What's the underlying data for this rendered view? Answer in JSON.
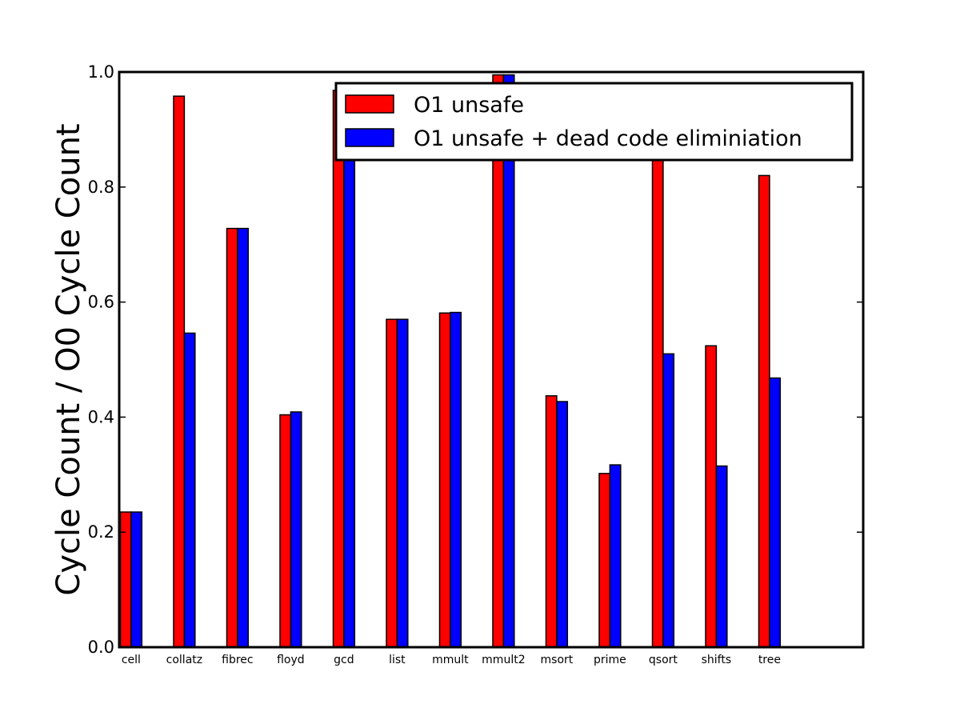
{
  "chart_data": {
    "type": "bar",
    "title": "",
    "xlabel": "",
    "ylabel": "Cycle Count / O0 Cycle Count",
    "ylim": [
      0.0,
      1.0
    ],
    "yticks": [
      "0.0",
      "0.2",
      "0.4",
      "0.6",
      "0.8",
      "1.0"
    ],
    "grid": false,
    "legend_position": "top-right",
    "categories": [
      "cell",
      "collatz",
      "fibrec",
      "floyd",
      "gcd",
      "list",
      "mmult",
      "mmult2",
      "msort",
      "prime",
      "qsort",
      "shifts",
      "tree"
    ],
    "series": [
      {
        "name": "O1 unsafe",
        "color": "#ff0000",
        "values": [
          0.235,
          0.958,
          0.728,
          0.404,
          0.968,
          0.57,
          0.581,
          0.995,
          0.437,
          0.302,
          0.935,
          0.524,
          0.82
        ]
      },
      {
        "name": "O1 unsafe + dead code eliminiation",
        "color": "#0000ff",
        "values": [
          0.235,
          0.546,
          0.728,
          0.409,
          0.968,
          0.57,
          0.582,
          0.995,
          0.427,
          0.317,
          0.51,
          0.315,
          0.468
        ]
      }
    ]
  }
}
